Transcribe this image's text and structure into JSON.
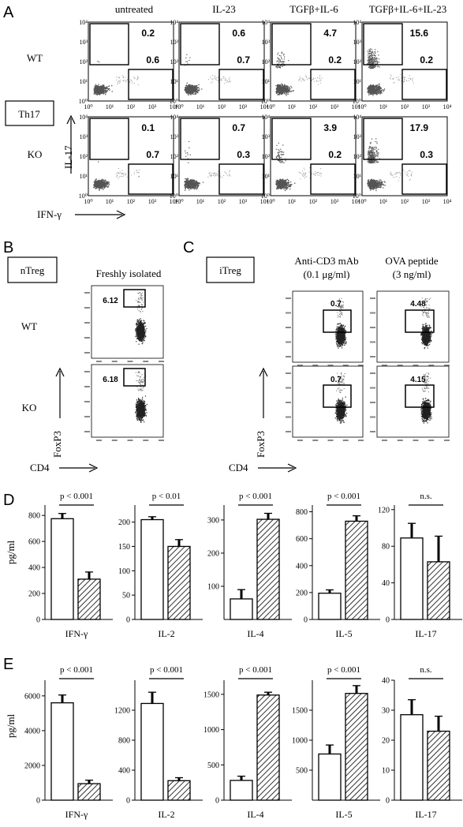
{
  "figure": {
    "panel_labels": [
      "A",
      "B",
      "C",
      "D",
      "E"
    ],
    "panelA": {
      "conditions": [
        "untreated",
        "IL-23",
        "TGFβ+IL-6",
        "TGFβ+IL-6+IL-23"
      ],
      "rows": [
        {
          "label": "WT",
          "upper": [
            "0.2",
            "0.6",
            "4.7",
            "15.6"
          ],
          "lower": [
            "0.6",
            "0.7",
            "0.2",
            "0.2"
          ]
        },
        {
          "label": "KO",
          "upper": [
            "0.1",
            "0.7",
            "3.9",
            "17.9"
          ],
          "lower": [
            "0.7",
            "0.3",
            "0.2",
            "0.3"
          ]
        }
      ],
      "boxed_label": "Th17",
      "ylabel": "IL-17",
      "xlabel": "IFN-γ",
      "ticks_y": [
        "10⁰",
        "10¹",
        "10²",
        "10³",
        "10⁴"
      ],
      "ticks_x": [
        "10⁰",
        "10¹",
        "10²",
        "10³",
        "10⁴"
      ]
    },
    "panelB": {
      "boxed_label": "nTreg",
      "header": "Freshly isolated",
      "rows": [
        {
          "label": "WT",
          "value": "6.12"
        },
        {
          "label": "KO",
          "value": "6.18"
        }
      ],
      "ylabel": "FoxP3",
      "xlabel": "CD4"
    },
    "panelC": {
      "boxed_label": "iTreg",
      "headers": [
        {
          "line1": "Anti-CD3 mAb",
          "line2": "(0.1 μg/ml)"
        },
        {
          "line1": "OVA peptide",
          "line2": "(3 ng/ml)"
        }
      ],
      "rows": [
        {
          "values": [
            "0.7",
            "4.48"
          ]
        },
        {
          "values": [
            "0.7",
            "4.15"
          ]
        }
      ],
      "ylabel": "FoxP3",
      "xlabel": "CD4"
    },
    "ylabel_bars": "pg/ml"
  },
  "chart_data": [
    {
      "type": "bar",
      "panel": "D",
      "subplots": [
        {
          "category": "IFN-γ",
          "p": "p < 0.001",
          "values": [
            775,
            310
          ],
          "errors": [
            40,
            55
          ],
          "yticks": [
            0,
            200,
            400,
            600,
            800
          ],
          "ylim": [
            0,
            880
          ]
        },
        {
          "category": "IL-2",
          "p": "p < 0.01",
          "values": [
            205,
            150
          ],
          "errors": [
            6,
            14
          ],
          "yticks": [
            0,
            50,
            100,
            150,
            200
          ],
          "ylim": [
            0,
            235
          ]
        },
        {
          "category": "IL-4",
          "p": "p < 0.001",
          "values": [
            62,
            302
          ],
          "errors": [
            28,
            18
          ],
          "yticks": [
            100,
            200,
            300
          ],
          "ylim": [
            0,
            345
          ]
        },
        {
          "category": "IL-5",
          "p": "p < 0.001",
          "values": [
            195,
            730
          ],
          "errors": [
            25,
            40
          ],
          "yticks": [
            0,
            200,
            400,
            600,
            800
          ],
          "ylim": [
            0,
            850
          ]
        },
        {
          "category": "IL-17",
          "p": "n.s.",
          "values": [
            89,
            63
          ],
          "errors": [
            16,
            28
          ],
          "yticks": [
            0,
            40,
            80,
            120
          ],
          "ylim": [
            0,
            125
          ]
        }
      ]
    },
    {
      "type": "bar",
      "panel": "E",
      "subplots": [
        {
          "category": "IFN-γ",
          "p": "p < 0.001",
          "values": [
            5600,
            950
          ],
          "errors": [
            450,
            200
          ],
          "yticks": [
            0,
            2000,
            4000,
            6000
          ],
          "ylim": [
            0,
            6900
          ]
        },
        {
          "category": "IL-2",
          "p": "p < 0.001",
          "values": [
            1290,
            260
          ],
          "errors": [
            150,
            40
          ],
          "yticks": [
            0,
            400,
            800,
            1200
          ],
          "ylim": [
            0,
            1600
          ]
        },
        {
          "category": "IL-4",
          "p": "p < 0.001",
          "values": [
            280,
            1490
          ],
          "errors": [
            60,
            40
          ],
          "yticks": [
            0,
            500,
            1000,
            1500
          ],
          "ylim": [
            0,
            1700
          ]
        },
        {
          "category": "IL-5",
          "p": "p < 0.001",
          "values": [
            770,
            1780
          ],
          "errors": [
            150,
            130
          ],
          "yticks": [
            500,
            1000,
            1500
          ],
          "ylim": [
            0,
            2000
          ]
        },
        {
          "category": "IL-17",
          "p": "n.s.",
          "values": [
            28.5,
            23
          ],
          "errors": [
            5,
            5
          ],
          "yticks": [
            0,
            10,
            20,
            30,
            40
          ],
          "ylim": [
            0,
            40
          ]
        }
      ]
    }
  ]
}
